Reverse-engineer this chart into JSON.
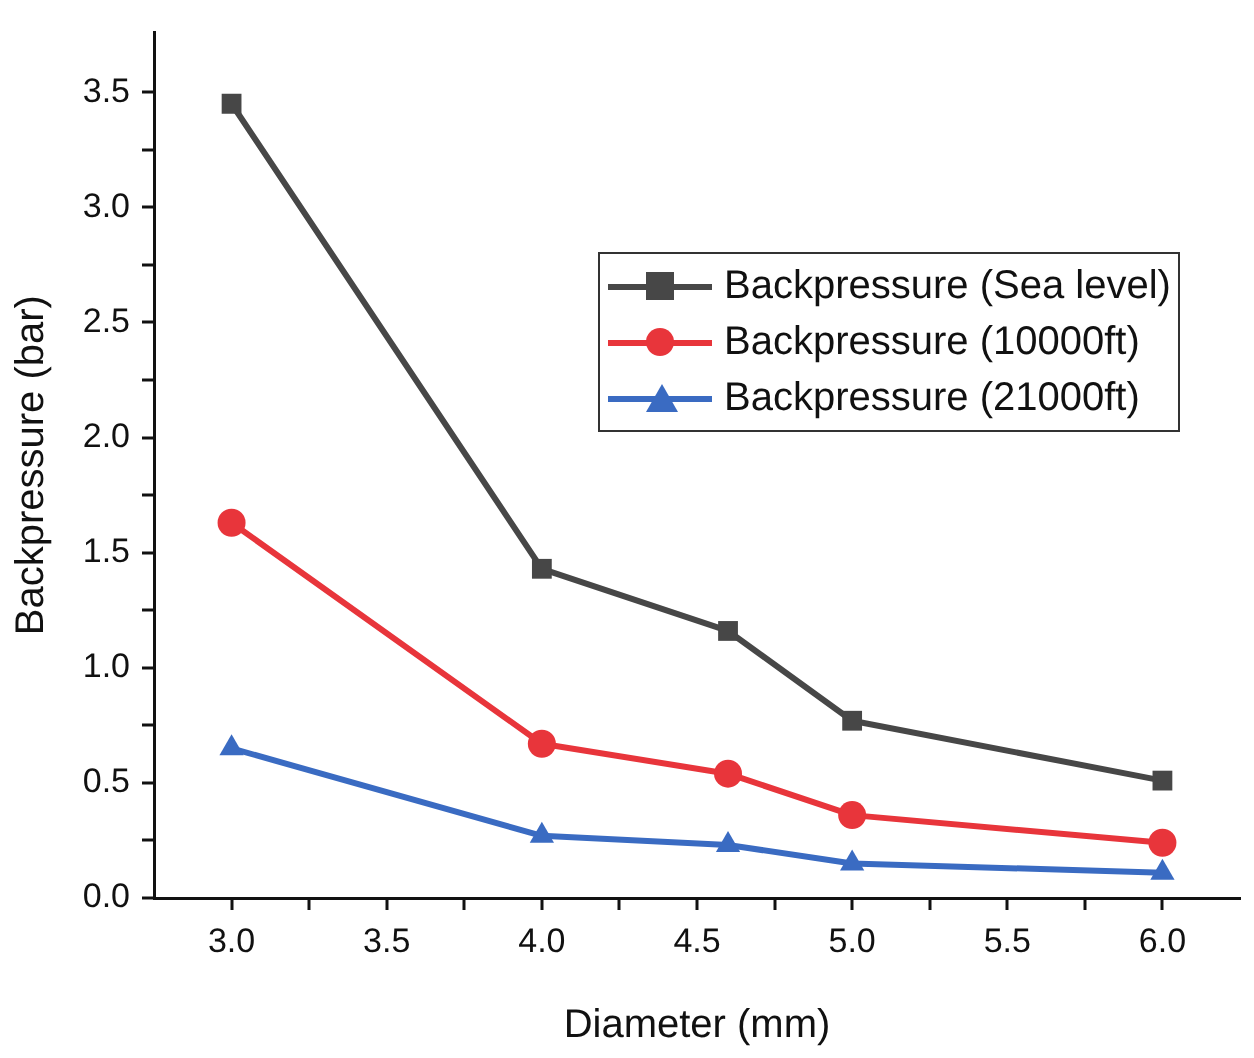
{
  "chart_data": {
    "type": "line",
    "xlabel": "Diameter (mm)",
    "ylabel": "Backpressure (bar)",
    "xlim": [
      2.75,
      6.25
    ],
    "xticks": [
      {
        "value": 3,
        "label": "3.0"
      },
      {
        "value": 3.25,
        "label": null
      },
      {
        "value": 3.5,
        "label": "3.5"
      },
      {
        "value": 3.75,
        "label": null
      },
      {
        "value": 4,
        "label": "4.0"
      },
      {
        "value": 4.25,
        "label": null
      },
      {
        "value": 4.5,
        "label": "4.5"
      },
      {
        "value": 4.75,
        "label": null
      },
      {
        "value": 5,
        "label": "5.0"
      },
      {
        "value": 5.25,
        "label": null
      },
      {
        "value": 5.5,
        "label": "5.5"
      },
      {
        "value": 5.75,
        "label": null
      },
      {
        "value": 6,
        "label": "6.0"
      }
    ],
    "ylim": [
      0,
      3.76
    ],
    "yticks": [
      {
        "value": 0,
        "label": "0.0"
      },
      {
        "value": 0.25,
        "label": null
      },
      {
        "value": 0.5,
        "label": "0.5"
      },
      {
        "value": 0.75,
        "label": null
      },
      {
        "value": 1,
        "label": "1.0"
      },
      {
        "value": 1.25,
        "label": null
      },
      {
        "value": 1.5,
        "label": "1.5"
      },
      {
        "value": 1.75,
        "label": null
      },
      {
        "value": 2,
        "label": "2.0"
      },
      {
        "value": 2.25,
        "label": null
      },
      {
        "value": 2.5,
        "label": "2.5"
      },
      {
        "value": 2.75,
        "label": null
      },
      {
        "value": 3,
        "label": "3.0"
      },
      {
        "value": 3.25,
        "label": null
      },
      {
        "value": 3.5,
        "label": "3.5"
      }
    ],
    "x": [
      3,
      4,
      4.6,
      5,
      6
    ],
    "series": [
      {
        "name": "Backpressure (Sea level)",
        "color": "#474747",
        "marker": "square",
        "values": [
          3.45,
          1.43,
          1.16,
          0.77,
          0.51
        ]
      },
      {
        "name": "Backpressure (10000ft)",
        "color": "#e8353b",
        "marker": "circle",
        "values": [
          1.63,
          0.67,
          0.54,
          0.36,
          0.24
        ]
      },
      {
        "name": "Backpressure (21000ft)",
        "color": "#3a6bc2",
        "marker": "triangle",
        "values": [
          0.65,
          0.27,
          0.23,
          0.15,
          0.11
        ]
      }
    ],
    "grid": false,
    "legend": "top right",
    "line_style": "solid"
  }
}
